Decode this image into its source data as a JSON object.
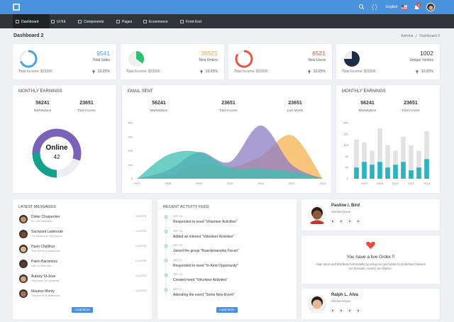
{
  "header": {
    "language": "English",
    "notifications": 3
  },
  "menu": [
    "Dashboard",
    "UI Kit",
    "Components",
    "Pages",
    "Ecommerce",
    "Front End"
  ],
  "page": {
    "title": "Dashboard 2",
    "breadcrumb": [
      "Admiria",
      "Dashboard 2"
    ]
  },
  "stats": [
    {
      "value": 9541,
      "label": "Total Sales",
      "income": "Total Income: $22506",
      "change": "10.25%",
      "percent": 70,
      "style": "ring",
      "color": "#4aa3df",
      "value_color": "#4aa3df"
    },
    {
      "value": 36521,
      "label": "New Orders",
      "income": "Total Income: $22506",
      "change": "10.25%",
      "percent": 35,
      "style": "pie",
      "color": "#2fbf71",
      "value_color": "#f0a43a"
    },
    {
      "value": 6521,
      "label": "New Users",
      "income": "Total Income: $22506",
      "change": "10.25%",
      "percent": 85,
      "style": "ring",
      "color": "#e9553f",
      "value_color": "#e9553f"
    },
    {
      "value": 1002,
      "label": "Unique Visitors",
      "income": "Total Income: $22506",
      "change": "10.25%",
      "percent": 75,
      "style": "pie",
      "color": "#1f2d44",
      "value_color": "#333333"
    }
  ],
  "earnings": {
    "title": "MONTHLY EARNINGS",
    "metrics": [
      {
        "value": 56241,
        "label": "Marketplace"
      },
      {
        "value": 23651,
        "label": "Total Income"
      }
    ],
    "donut": {
      "type": "donut",
      "label": "Online",
      "center_value": 42,
      "values": [
        55,
        20,
        25
      ],
      "colors": [
        "#7a62b8",
        "#eceef3",
        "#14a08e"
      ]
    }
  },
  "email": {
    "title": "EMAIL SENT",
    "metrics": [
      {
        "value": 56241,
        "label": "Marketplace"
      },
      {
        "value": 23651,
        "label": "Total Income"
      },
      {
        "value": 23651,
        "label": "Last Month"
      }
    ],
    "chart": {
      "type": "area",
      "x": [
        2007,
        2008,
        2009,
        2010,
        2011,
        2012,
        2013
      ],
      "xlim": [
        2007,
        2013
      ],
      "ylim": [
        0,
        400
      ],
      "yticks": [
        0,
        100,
        200,
        300,
        400
      ],
      "series": [
        {
          "color": "#f4b350",
          "values": [
            0,
            20,
            110,
            80,
            160,
            310,
            0
          ]
        },
        {
          "color": "#8e7cc3",
          "values": [
            0,
            60,
            190,
            120,
            380,
            100,
            0
          ]
        },
        {
          "color": "#3cc0b0",
          "values": [
            0,
            170,
            190,
            80,
            70,
            50,
            0
          ]
        }
      ]
    }
  },
  "monthly": {
    "title": "MONTHLY EARNINGS",
    "metrics": [
      {
        "value": 56241,
        "label": "Marketplace"
      },
      {
        "value": 23651,
        "label": "Total Income"
      }
    ],
    "chart": {
      "type": "bar",
      "categories": [
        null,
        "2007",
        null,
        "2008",
        null,
        "2010",
        null,
        "2012",
        null,
        "2014"
      ],
      "ylim": [
        0,
        200
      ],
      "yticks": [
        0,
        40,
        80,
        120,
        160,
        200
      ],
      "series": [
        {
          "color": "#e2e2e2",
          "values": [
            140,
            130,
            100,
            180,
            120,
            100,
            150,
            120,
            100,
            170
          ]
        },
        {
          "color": "#2bb3c0",
          "values": [
            40,
            60,
            50,
            60,
            40,
            50,
            60,
            30,
            40,
            70
          ]
        }
      ]
    }
  },
  "messages": {
    "title": "LATEST MESSAGES",
    "button": "Load More",
    "items": [
      {
        "name": "Didier Charpentier",
        "time": "13:40 PM",
        "text": "Hi, I am available..."
      },
      {
        "name": "Sacripant Laderoute",
        "time": "13:40 PM",
        "text": "I've finished it! See you so"
      },
      {
        "name": "Huon Chalifour",
        "time": "13:40 PM",
        "text": "This theme is awesome!"
      },
      {
        "name": "Paien Barrientos",
        "time": "13:40 PM",
        "text": "Nice to meet you"
      },
      {
        "name": "Aubrey St-Jean",
        "time": "13:40 PM",
        "text": "Hey! there I'm available..."
      },
      {
        "name": "Maurice Monty",
        "time": "13:40 PM",
        "text": "This theme is awesome!"
      }
    ]
  },
  "activity": {
    "title": "RECENT ACTIVITY FEED",
    "button": "Load More",
    "items": [
      {
        "date": "SEP 25",
        "text": "Responded to need \"Volunteer Activities\""
      },
      {
        "date": "SEP 24",
        "text": "Added an interest \"Volunteer Activities\""
      },
      {
        "date": "SEP 23",
        "text": "Joined the group \"Boardsmanship Forum\""
      },
      {
        "date": "SEP 22",
        "text": "Responded to need \"In-Kind Opportunity\""
      },
      {
        "date": "SEP 20",
        "text": "Created need \"Volunteer Activities\""
      },
      {
        "date": "SEP 17",
        "text": "Attending the event \"Some New Event\""
      }
    ]
  },
  "profiles": [
    {
      "name": "Pauline I. Bird",
      "role": "Webdeveloper"
    },
    {
      "name": "Ralph L. Alva",
      "role": "Webdeveloper"
    }
  ],
  "live_order": {
    "title": "You have a live Order !!",
    "text": "Align items and distribute horizontally by using our grid system's predefined classes (or semantic mixins), as ellipses."
  }
}
